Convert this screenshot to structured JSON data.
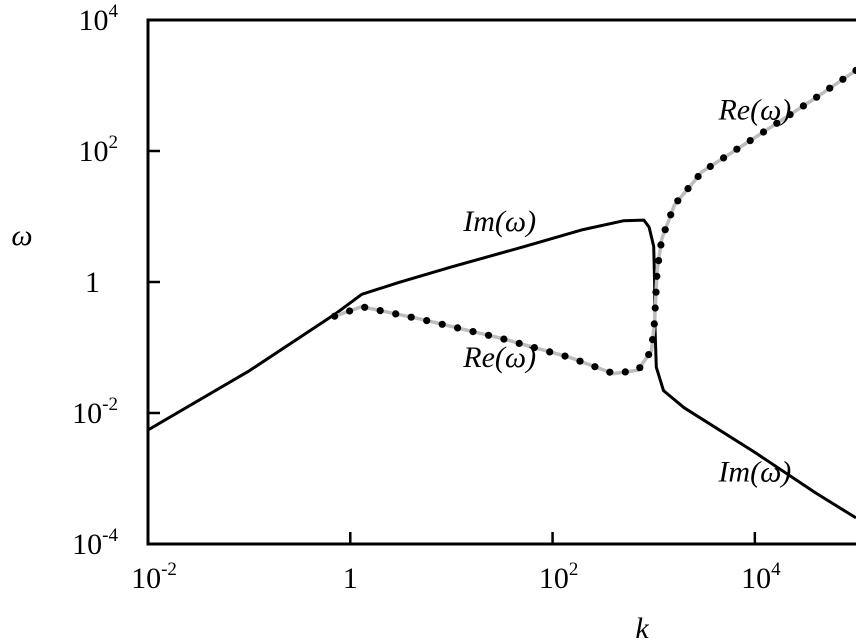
{
  "chart_data": {
    "type": "line",
    "xlabel": "k",
    "ylabel": "ω",
    "xscale": "log",
    "yscale": "log",
    "xlim": [
      0.01,
      100000
    ],
    "ylim": [
      0.0001,
      10000
    ],
    "grid": false,
    "x_ticks": [
      {
        "value": 0.01,
        "base": "10",
        "exp": "-2"
      },
      {
        "value": 1,
        "base": "1",
        "exp": ""
      },
      {
        "value": 100,
        "base": "10",
        "exp": "2"
      },
      {
        "value": 10000,
        "base": "10",
        "exp": "4"
      }
    ],
    "y_ticks": [
      {
        "value": 0.0001,
        "base": "10",
        "exp": "-4"
      },
      {
        "value": 0.01,
        "base": "10",
        "exp": "-2"
      },
      {
        "value": 1,
        "base": "1",
        "exp": ""
      },
      {
        "value": 100,
        "base": "10",
        "exp": "2"
      },
      {
        "value": 10000,
        "base": "10",
        "exp": "4"
      }
    ],
    "series": [
      {
        "style": "solid-black",
        "points": [
          [
            0.01,
            0.0055
          ],
          [
            0.1,
            0.044
          ],
          [
            0.7,
            0.32
          ],
          [
            1.3,
            0.65
          ],
          [
            3,
            0.98
          ],
          [
            10,
            1.7
          ],
          [
            50,
            3.4
          ],
          [
            200,
            6.3
          ],
          [
            500,
            8.6
          ],
          [
            800,
            8.8
          ],
          [
            900,
            6.9
          ],
          [
            1000,
            3.5
          ],
          [
            1020,
            1.0
          ],
          [
            1030,
            0.2
          ],
          [
            1060,
            0.05
          ],
          [
            1250,
            0.022
          ],
          [
            2000,
            0.012
          ],
          [
            10000,
            0.0025
          ],
          [
            40000,
            0.0006
          ],
          [
            100000,
            0.00025
          ]
        ]
      },
      {
        "style": "gray-solid",
        "points": [
          [
            0.7,
            0.3
          ],
          [
            1.3,
            0.42
          ],
          [
            5,
            0.27
          ],
          [
            30,
            0.14
          ],
          [
            150,
            0.07
          ],
          [
            400,
            0.04
          ],
          [
            700,
            0.045
          ],
          [
            950,
            0.09
          ],
          [
            1020,
            0.25
          ],
          [
            1080,
            1.5
          ],
          [
            1200,
            4.5
          ],
          [
            1600,
            15
          ],
          [
            3000,
            48
          ],
          [
            10000,
            160
          ],
          [
            40000,
            650
          ],
          [
            100000,
            1700
          ]
        ]
      },
      {
        "style": "black-dots",
        "points": [
          [
            0.7,
            0.3
          ],
          [
            1.3,
            0.42
          ],
          [
            5,
            0.27
          ],
          [
            30,
            0.14
          ],
          [
            150,
            0.07
          ],
          [
            400,
            0.04
          ],
          [
            700,
            0.045
          ],
          [
            950,
            0.09
          ],
          [
            1020,
            0.25
          ],
          [
            1080,
            1.5
          ],
          [
            1200,
            4.5
          ],
          [
            1600,
            15
          ],
          [
            3000,
            48
          ],
          [
            10000,
            160
          ],
          [
            40000,
            650
          ],
          [
            100000,
            1700
          ]
        ]
      }
    ],
    "annotations": [
      {
        "text": "Im(ω)",
        "x": 30,
        "y": 6
      },
      {
        "text": "Re(ω)",
        "x": 30,
        "y": 0.05
      },
      {
        "text": "Re(ω)",
        "x": 10000,
        "y": 300
      },
      {
        "text": "Im(ω)",
        "x": 10000,
        "y": 0.0009
      }
    ]
  }
}
